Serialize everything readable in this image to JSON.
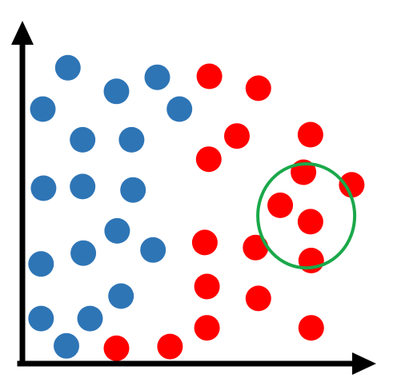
{
  "chart_data": {
    "type": "scatter",
    "title": "",
    "xlabel": "",
    "ylabel": "",
    "xlim": [
      0,
      100
    ],
    "ylim": [
      0,
      100
    ],
    "grid": false,
    "legend": "none",
    "axes": {
      "color": "#000000",
      "arrowheads": true
    },
    "series": [
      {
        "color": "#2e75b6",
        "points": [
          [
            12.9,
            86.7
          ],
          [
            26.7,
            79.8
          ],
          [
            38.3,
            83.9
          ],
          [
            5.8,
            74.6
          ],
          [
            44.6,
            74.6
          ],
          [
            17.1,
            65.6
          ],
          [
            31.0,
            65.6
          ],
          [
            6.0,
            51.4
          ],
          [
            17.1,
            51.9
          ],
          [
            31.4,
            50.9
          ],
          [
            26.9,
            38.9
          ],
          [
            17.3,
            32.4
          ],
          [
            37.1,
            33.3
          ],
          [
            5.3,
            29.2
          ],
          [
            28.0,
            19.8
          ],
          [
            5.3,
            13.2
          ],
          [
            19.2,
            13.2
          ],
          [
            12.5,
            5.2
          ]
        ]
      },
      {
        "color": "#ff0000",
        "points": [
          [
            53.1,
            84.2
          ],
          [
            67.0,
            80.7
          ],
          [
            60.9,
            66.7
          ],
          [
            81.8,
            67.1
          ],
          [
            52.9,
            59.9
          ],
          [
            79.8,
            56.1
          ],
          [
            93.5,
            52.4
          ],
          [
            73.2,
            46.4
          ],
          [
            81.8,
            41.6
          ],
          [
            51.8,
            35.5
          ],
          [
            66.2,
            34.0
          ],
          [
            82.0,
            30.2
          ],
          [
            52.4,
            22.6
          ],
          [
            67.0,
            19.1
          ],
          [
            52.4,
            10.5
          ],
          [
            26.7,
            4.5
          ],
          [
            41.9,
            5.0
          ],
          [
            82.0,
            10.5
          ]
        ]
      }
    ],
    "annotations": [
      {
        "type": "circle",
        "color": "#1aa84a",
        "center": [
          80.6,
          43.3
        ],
        "radius_x": 27.5,
        "radius_y": 30.5
      }
    ]
  }
}
